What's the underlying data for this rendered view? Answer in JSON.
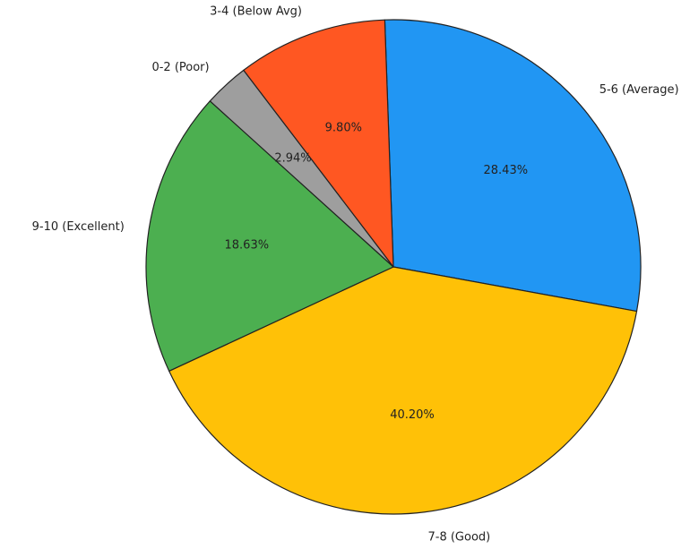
{
  "chart_data": {
    "type": "pie",
    "title": "",
    "slices": [
      {
        "label": "5-6 (Average)",
        "percent_label": "28.43%",
        "value": 28.43,
        "color": "#2196F3"
      },
      {
        "label": "7-8 (Good)",
        "percent_label": "40.20%",
        "value": 40.2,
        "color": "#FFC107"
      },
      {
        "label": "9-10 (Excellent)",
        "percent_label": "18.63%",
        "value": 18.63,
        "color": "#4CAF50"
      },
      {
        "label": "0-2 (Poor)",
        "percent_label": "2.94%",
        "value": 2.94,
        "color": "#9E9E9E"
      },
      {
        "label": "3-4 (Below Avg)",
        "percent_label": "9.80%",
        "value": 9.8,
        "color": "#FF5722"
      }
    ],
    "start_angle_deg": 92,
    "direction": "clockwise"
  }
}
